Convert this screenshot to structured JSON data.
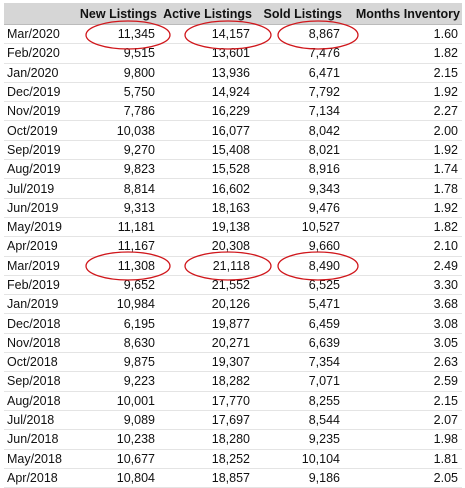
{
  "table": {
    "columns": [
      "New Listings",
      "Active Listings",
      "Sold Listings",
      "Months Inventory"
    ],
    "rows": [
      [
        "Mar/2020",
        "11,345",
        "14,157",
        "8,867",
        "1.60"
      ],
      [
        "Feb/2020",
        "9,515",
        "13,601",
        "7,476",
        "1.82"
      ],
      [
        "Jan/2020",
        "9,800",
        "13,936",
        "6,471",
        "2.15"
      ],
      [
        "Dec/2019",
        "5,750",
        "14,924",
        "7,792",
        "1.92"
      ],
      [
        "Nov/2019",
        "7,786",
        "16,229",
        "7,134",
        "2.27"
      ],
      [
        "Oct/2019",
        "10,038",
        "16,077",
        "8,042",
        "2.00"
      ],
      [
        "Sep/2019",
        "9,270",
        "15,408",
        "8,021",
        "1.92"
      ],
      [
        "Aug/2019",
        "9,823",
        "15,528",
        "8,916",
        "1.74"
      ],
      [
        "Jul/2019",
        "8,814",
        "16,602",
        "9,343",
        "1.78"
      ],
      [
        "Jun/2019",
        "9,313",
        "18,163",
        "9,476",
        "1.92"
      ],
      [
        "May/2019",
        "11,181",
        "19,138",
        "10,527",
        "1.82"
      ],
      [
        "Apr/2019",
        "11,167",
        "20,308",
        "9,660",
        "2.10"
      ],
      [
        "Mar/2019",
        "11,308",
        "21,118",
        "8,490",
        "2.49"
      ],
      [
        "Feb/2019",
        "9,652",
        "21,552",
        "6,525",
        "3.30"
      ],
      [
        "Jan/2019",
        "10,984",
        "20,126",
        "5,471",
        "3.68"
      ],
      [
        "Dec/2018",
        "6,195",
        "19,877",
        "6,459",
        "3.08"
      ],
      [
        "Nov/2018",
        "8,630",
        "20,271",
        "6,639",
        "3.05"
      ],
      [
        "Oct/2018",
        "9,875",
        "19,307",
        "7,354",
        "2.63"
      ],
      [
        "Sep/2018",
        "9,223",
        "18,282",
        "7,071",
        "2.59"
      ],
      [
        "Aug/2018",
        "10,001",
        "17,770",
        "8,255",
        "2.15"
      ],
      [
        "Jul/2018",
        "9,089",
        "17,697",
        "8,544",
        "2.07"
      ],
      [
        "Jun/2018",
        "10,238",
        "18,280",
        "9,235",
        "1.98"
      ],
      [
        "May/2018",
        "10,677",
        "18,252",
        "10,104",
        "1.81"
      ],
      [
        "Apr/2018",
        "10,804",
        "18,857",
        "9,186",
        "2.05"
      ]
    ]
  }
}
